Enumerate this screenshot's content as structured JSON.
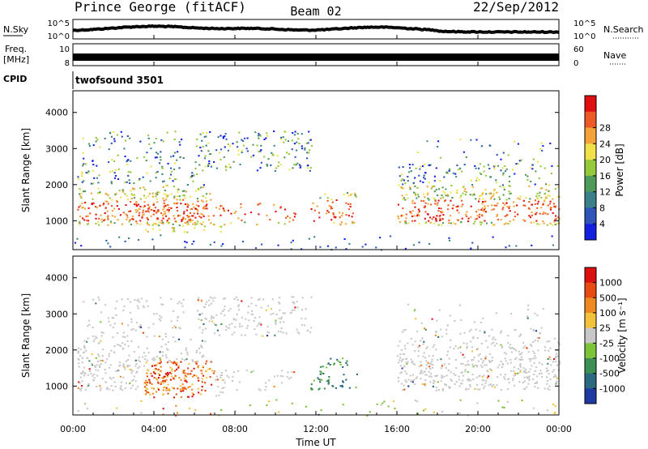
{
  "header": {
    "station": "Prince George (fitACF)",
    "beam": "Beam 02",
    "date": "22/Sep/2012"
  },
  "nsky": {
    "label": "N.Sky",
    "ticks": [
      "10^5",
      "10^0"
    ]
  },
  "nsearch": {
    "label": "N.Search",
    "ticks": [
      "10^5",
      "10^0"
    ]
  },
  "freq": {
    "label_top": "Freq.",
    "label_unit": "[MHz]",
    "ticks": [
      "10",
      "8"
    ]
  },
  "nave": {
    "label": "Nave",
    "ticks": [
      "60",
      "0"
    ]
  },
  "cpid": {
    "label": "CPID",
    "value": "twofsound 3501"
  },
  "chart_data": [
    {
      "type": "heatmap",
      "panel": "power",
      "ylabel": "Slant Range [km]",
      "yticks": [
        1000,
        2000,
        3000,
        4000
      ],
      "ylim": [
        200,
        4600
      ],
      "colorbar": {
        "label": "Power [dB]",
        "ticks": [
          "4",
          "8",
          "12",
          "16",
          "20",
          "24",
          "28"
        ],
        "colors": [
          "#1420e0",
          "#2d56b8",
          "#3a7f8a",
          "#4f9a5a",
          "#96c83c",
          "#f0e14a",
          "#f5a238",
          "#ee5a26",
          "#e01010"
        ]
      }
    },
    {
      "type": "heatmap",
      "panel": "velocity",
      "ylabel": "Slant Range [km]",
      "yticks": [
        1000,
        2000,
        3000,
        4000
      ],
      "ylim": [
        200,
        4600
      ],
      "colorbar": {
        "label": "Velocity [m s⁻¹]",
        "ticks": [
          "1000",
          "500",
          "100",
          "25",
          "-25",
          "-100",
          "-500",
          "-1000"
        ],
        "colors": [
          "#1f3aa0",
          "#2c6a82",
          "#3d8f55",
          "#7ec43a",
          "#c8c8c8",
          "#f2c23a",
          "#f08a20",
          "#e84a14",
          "#dd1010"
        ]
      }
    }
  ],
  "xaxis": {
    "label": "Time UT",
    "ticks": [
      "00:00",
      "04:00",
      "08:00",
      "12:00",
      "16:00",
      "20:00",
      "00:00"
    ]
  }
}
